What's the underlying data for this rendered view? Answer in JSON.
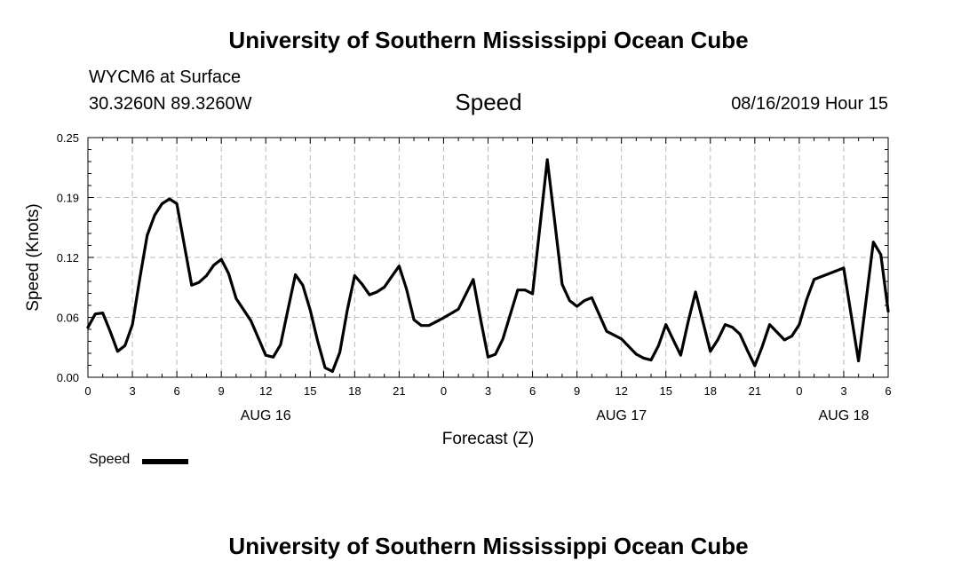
{
  "header": {
    "title": "University of Southern Mississippi Ocean Cube"
  },
  "station": {
    "name": "WYCM6 at Surface",
    "coords": "30.3260N 89.3260W"
  },
  "variable": {
    "title": "Speed"
  },
  "timestamp": "08/16/2019 Hour 15",
  "footer": {
    "title": "University of Southern Mississippi Ocean Cube"
  },
  "legend": {
    "label": "Speed",
    "color": "#000000"
  },
  "colors": {
    "line": "#000000",
    "grid": "#bbbbbb",
    "background": "#ffffff"
  },
  "chart_data": {
    "type": "line",
    "title": "Speed",
    "xlabel": "Forecast (Z)",
    "ylabel": "Speed (Knots)",
    "xlim": [
      0,
      54
    ],
    "ylim": [
      0,
      0.25
    ],
    "grid": true,
    "legend_position": "bottom-left",
    "x_ticks": [
      0,
      3,
      6,
      9,
      12,
      15,
      18,
      21,
      24,
      27,
      30,
      33,
      36,
      39,
      42,
      45,
      48,
      51,
      54
    ],
    "x_tick_labels": [
      "0",
      "3",
      "6",
      "9",
      "12",
      "15",
      "18",
      "21",
      "0",
      "3",
      "6",
      "9",
      "12",
      "15",
      "18",
      "21",
      "0",
      "3",
      "6"
    ],
    "y_ticks": [
      0,
      0.0625,
      0.125,
      0.1875,
      0.25
    ],
    "y_tick_labels": [
      "0.00",
      "0.06",
      "0.12",
      "0.19",
      "0.25"
    ],
    "date_labels": [
      {
        "x": 12,
        "label": "AUG 16"
      },
      {
        "x": 36,
        "label": "AUG 17"
      },
      {
        "x": 51,
        "label": "AUG 18"
      }
    ],
    "series": [
      {
        "name": "Speed",
        "x": [
          0,
          0.5,
          1,
          1.5,
          2,
          2.5,
          3,
          3.5,
          4,
          4.5,
          5,
          5.5,
          6,
          6.5,
          7,
          7.5,
          8,
          8.5,
          9,
          9.5,
          10,
          11,
          12,
          12.5,
          13,
          13.5,
          14,
          14.5,
          15,
          15.5,
          16,
          16.5,
          17,
          17.5,
          18,
          18.5,
          19,
          19.5,
          20,
          20.5,
          21,
          21.5,
          22,
          22.5,
          23,
          23.5,
          24,
          25,
          26,
          26.5,
          27,
          27.5,
          28,
          29,
          29.5,
          30,
          31,
          31.5,
          32,
          32.5,
          33,
          33.5,
          34,
          35,
          36,
          37,
          37.5,
          38,
          38.5,
          39,
          40,
          40.5,
          41,
          41.5,
          42,
          42.5,
          43,
          43.5,
          44,
          44.5,
          45,
          45.5,
          46,
          46.5,
          47,
          47.5,
          48,
          48.5,
          49,
          51,
          51.5,
          52,
          53,
          53.5,
          54
        ],
        "values": [
          0.052,
          0.066,
          0.067,
          0.048,
          0.027,
          0.033,
          0.055,
          0.103,
          0.148,
          0.169,
          0.181,
          0.186,
          0.181,
          0.138,
          0.096,
          0.099,
          0.106,
          0.117,
          0.123,
          0.108,
          0.082,
          0.059,
          0.023,
          0.021,
          0.034,
          0.071,
          0.107,
          0.096,
          0.07,
          0.038,
          0.01,
          0.006,
          0.026,
          0.07,
          0.106,
          0.097,
          0.086,
          0.089,
          0.094,
          0.105,
          0.116,
          0.092,
          0.06,
          0.054,
          0.054,
          0.058,
          0.062,
          0.071,
          0.102,
          0.06,
          0.021,
          0.024,
          0.04,
          0.091,
          0.091,
          0.087,
          0.227,
          0.162,
          0.097,
          0.08,
          0.074,
          0.08,
          0.083,
          0.048,
          0.04,
          0.024,
          0.02,
          0.018,
          0.033,
          0.055,
          0.023,
          0.058,
          0.089,
          0.058,
          0.027,
          0.039,
          0.055,
          0.052,
          0.045,
          0.028,
          0.012,
          0.032,
          0.055,
          0.047,
          0.039,
          0.043,
          0.055,
          0.081,
          0.102,
          0.114,
          0.065,
          0.017,
          0.141,
          0.128,
          0.069
        ]
      }
    ]
  }
}
